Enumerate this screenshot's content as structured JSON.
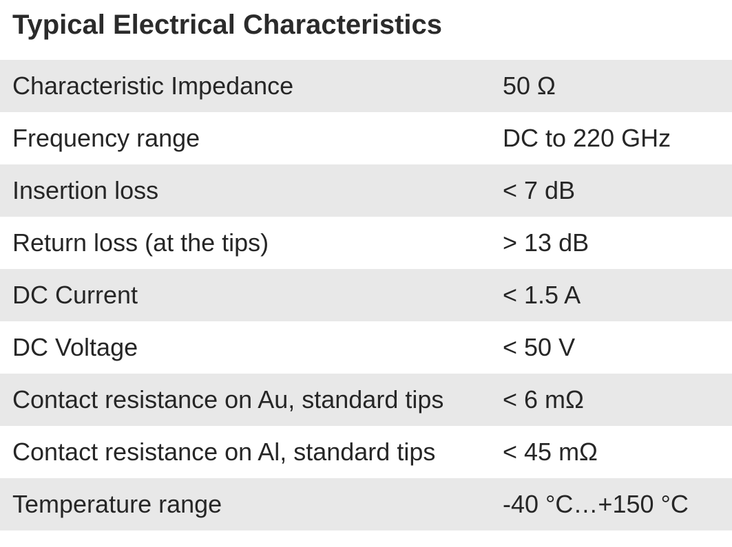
{
  "title": "Typical Electrical Characteristics",
  "rows": [
    {
      "label": "Characteristic Impedance",
      "value": "50 Ω"
    },
    {
      "label": "Frequency range",
      "value": "DC to 220 GHz"
    },
    {
      "label": "Insertion loss",
      "value": "< 7 dB"
    },
    {
      "label": "Return loss (at the tips)",
      "value": "> 13 dB"
    },
    {
      "label": "DC Current",
      "value": "< 1.5 A"
    },
    {
      "label": "DC Voltage",
      "value": "< 50 V"
    },
    {
      "label": "Contact resistance on Au, standard tips",
      "value": "< 6 mΩ"
    },
    {
      "label": "Contact resistance on Al, standard tips",
      "value": "< 45 mΩ"
    },
    {
      "label": "Temperature range",
      "value": "-40 °C…+150 °C"
    }
  ],
  "colors": {
    "shaded_row": "#e8e8e8",
    "text": "#262626"
  }
}
